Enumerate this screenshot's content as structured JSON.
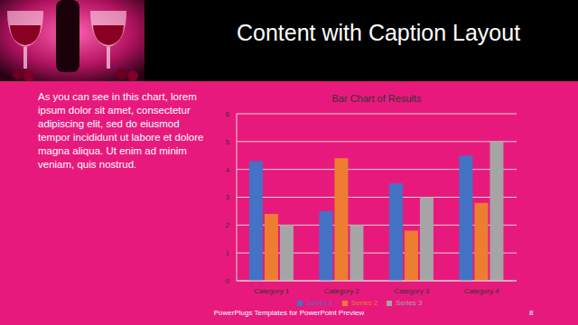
{
  "slide": {
    "title": "Content with Caption Layout",
    "caption": "As you can see in this chart, lorem ipsum dolor sit amet, consectetur adipiscing elit, sed do eiusmod tempor incididunt ut labore et dolore magna aliqua. Ut enim ad minim veniam, quis nostrud.",
    "footer": "PowerPlugs Templates for PowerPoint Preview",
    "page": 8
  },
  "chart_data": {
    "type": "bar",
    "title": "Bar Chart of Results",
    "categories": [
      "Category 1",
      "Category 2",
      "Category 3",
      "Category 4"
    ],
    "series": [
      {
        "name": "Series 1",
        "color": "#4472c4",
        "values": [
          4.3,
          2.5,
          3.5,
          4.5
        ]
      },
      {
        "name": "Series 2",
        "color": "#ed7d31",
        "values": [
          2.4,
          4.4,
          1.8,
          2.8
        ]
      },
      {
        "name": "Series 3",
        "color": "#a5a5a5",
        "values": [
          2,
          2,
          3,
          5
        ]
      }
    ],
    "ylim": [
      0,
      6
    ],
    "yticks": [
      0,
      1,
      2,
      3,
      4,
      5,
      6
    ],
    "grid": true,
    "legend": "bottom"
  }
}
